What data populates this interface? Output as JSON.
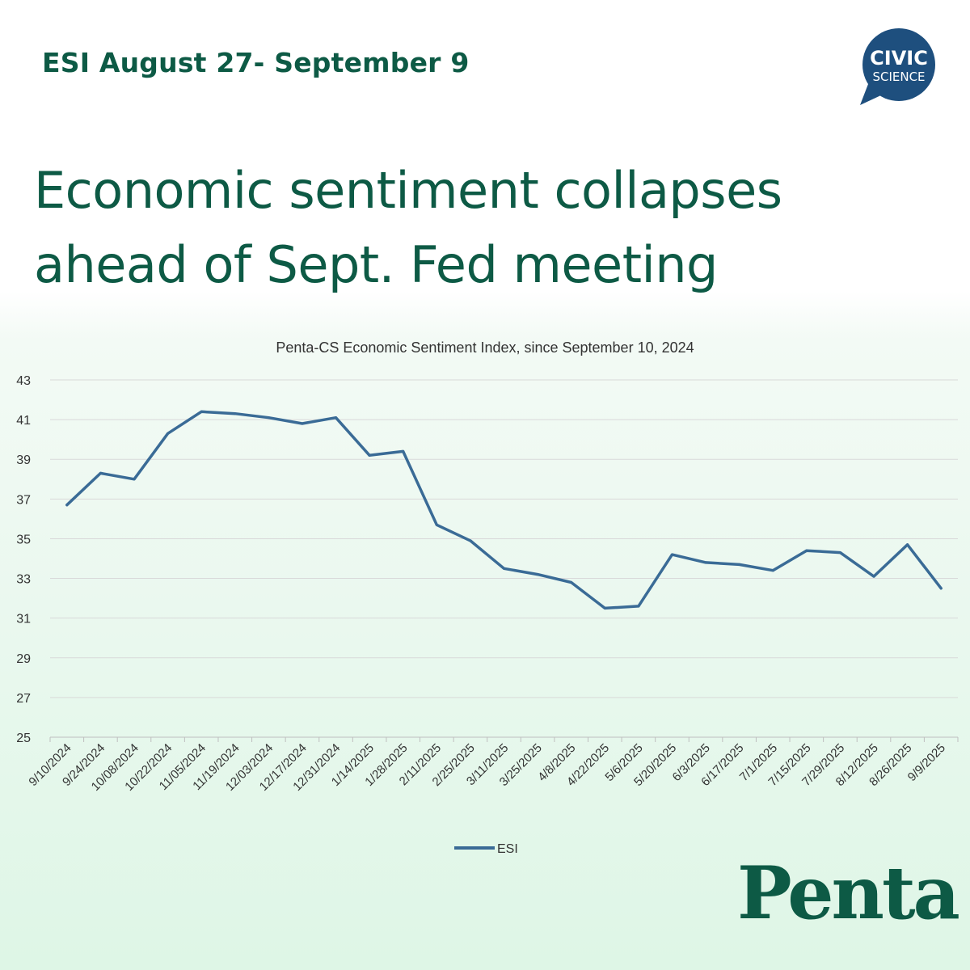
{
  "header": {
    "subtitle": "ESI August 27- September 9"
  },
  "headline": "Economic sentiment collapses ahead of Sept. Fed meeting",
  "logos": {
    "civic_line1": "CIVIC",
    "civic_line2": "SCIENCE",
    "brand": "Penta"
  },
  "colors": {
    "brand_green": "#0d5a45",
    "line": "#3a6b96",
    "civic_blue": "#1e4f7e"
  },
  "chart_data": {
    "type": "line",
    "title": "Penta-CS Economic Sentiment Index, since September 10, 2024",
    "xlabel": "",
    "ylabel": "",
    "ylim": [
      25,
      43
    ],
    "yticks": [
      25,
      27,
      29,
      31,
      33,
      35,
      37,
      39,
      41,
      43
    ],
    "grid": true,
    "legend_position": "bottom-center",
    "categories": [
      "9/10/2024",
      "9/24/2024",
      "10/08/2024",
      "10/22/2024",
      "11/05/2024",
      "11/19/2024",
      "12/03/2024",
      "12/17/2024",
      "12/31/2024",
      "1/14/2025",
      "1/28/2025",
      "2/11/2025",
      "2/25/2025",
      "3/11/2025",
      "3/25/2025",
      "4/8/2025",
      "4/22/2025",
      "5/6/2025",
      "5/20/2025",
      "6/3/2025",
      "6/17/2025",
      "7/1/2025",
      "7/15/2025",
      "7/29/2025",
      "8/12/2025",
      "8/26/2025",
      "9/9/2025"
    ],
    "series": [
      {
        "name": "ESI",
        "values": [
          36.7,
          38.3,
          38.0,
          40.3,
          41.4,
          41.3,
          41.1,
          40.8,
          41.1,
          39.2,
          39.4,
          35.7,
          34.9,
          33.5,
          33.2,
          32.8,
          31.5,
          31.6,
          34.2,
          33.8,
          33.7,
          33.4,
          34.4,
          34.3,
          33.1,
          34.7,
          32.5
        ]
      }
    ]
  }
}
